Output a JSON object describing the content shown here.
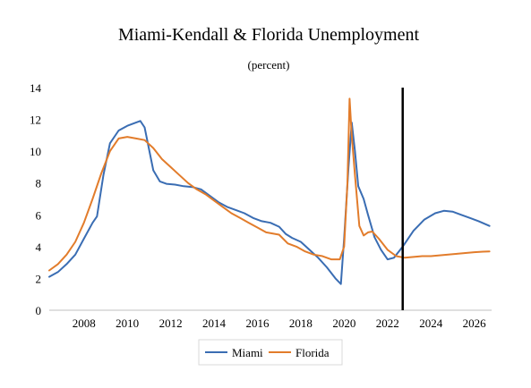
{
  "chart_data": {
    "type": "line",
    "title": "Miami-Kendall & Florida Unemployment",
    "subtitle": "(percent)",
    "xlabel": "",
    "ylabel": "",
    "xlim": [
      2006.4,
      2026.8
    ],
    "ylim": [
      0,
      14
    ],
    "x_ticks": [
      2008,
      2010,
      2012,
      2014,
      2016,
      2018,
      2020,
      2022,
      2024,
      2026
    ],
    "y_ticks": [
      0,
      2,
      4,
      6,
      8,
      10,
      12,
      14
    ],
    "grid": false,
    "legend_position": "bottom-center",
    "vertical_marker_x": 2022.7,
    "series": [
      {
        "name": "Miami",
        "color": "#3a6db3",
        "points": [
          [
            2006.4,
            2.1
          ],
          [
            2006.8,
            2.4
          ],
          [
            2007.2,
            2.9
          ],
          [
            2007.6,
            3.5
          ],
          [
            2008.0,
            4.5
          ],
          [
            2008.4,
            5.5
          ],
          [
            2008.6,
            5.9
          ],
          [
            2008.9,
            8.5
          ],
          [
            2009.2,
            10.5
          ],
          [
            2009.6,
            11.3
          ],
          [
            2010.0,
            11.6
          ],
          [
            2010.4,
            11.8
          ],
          [
            2010.6,
            11.9
          ],
          [
            2010.8,
            11.5
          ],
          [
            2011.2,
            8.8
          ],
          [
            2011.5,
            8.1
          ],
          [
            2011.8,
            7.95
          ],
          [
            2012.2,
            7.9
          ],
          [
            2012.6,
            7.8
          ],
          [
            2013.0,
            7.75
          ],
          [
            2013.4,
            7.6
          ],
          [
            2013.8,
            7.2
          ],
          [
            2014.2,
            6.8
          ],
          [
            2014.6,
            6.5
          ],
          [
            2015.0,
            6.3
          ],
          [
            2015.4,
            6.1
          ],
          [
            2015.8,
            5.8
          ],
          [
            2016.2,
            5.6
          ],
          [
            2016.6,
            5.5
          ],
          [
            2017.0,
            5.25
          ],
          [
            2017.3,
            4.8
          ],
          [
            2017.6,
            4.55
          ],
          [
            2018.0,
            4.3
          ],
          [
            2018.4,
            3.8
          ],
          [
            2018.8,
            3.3
          ],
          [
            2019.2,
            2.7
          ],
          [
            2019.6,
            2.0
          ],
          [
            2019.85,
            1.65
          ],
          [
            2020.0,
            4.5
          ],
          [
            2020.2,
            9.0
          ],
          [
            2020.35,
            11.8
          ],
          [
            2020.5,
            10.0
          ],
          [
            2020.65,
            7.8
          ],
          [
            2020.9,
            7.0
          ],
          [
            2021.1,
            6.0
          ],
          [
            2021.4,
            4.6
          ],
          [
            2021.7,
            3.8
          ],
          [
            2022.0,
            3.2
          ],
          [
            2022.3,
            3.3
          ],
          [
            2022.7,
            4.0
          ],
          [
            2023.2,
            5.0
          ],
          [
            2023.7,
            5.7
          ],
          [
            2024.2,
            6.1
          ],
          [
            2024.6,
            6.25
          ],
          [
            2025.0,
            6.2
          ],
          [
            2025.4,
            6.0
          ],
          [
            2025.8,
            5.8
          ],
          [
            2026.2,
            5.6
          ],
          [
            2026.7,
            5.3
          ]
        ]
      },
      {
        "name": "Florida",
        "color": "#e27c2b",
        "points": [
          [
            2006.4,
            2.5
          ],
          [
            2006.8,
            2.9
          ],
          [
            2007.2,
            3.5
          ],
          [
            2007.6,
            4.3
          ],
          [
            2008.0,
            5.5
          ],
          [
            2008.4,
            7.0
          ],
          [
            2008.8,
            8.6
          ],
          [
            2009.2,
            10.0
          ],
          [
            2009.6,
            10.8
          ],
          [
            2010.0,
            10.9
          ],
          [
            2010.4,
            10.8
          ],
          [
            2010.8,
            10.7
          ],
          [
            2011.2,
            10.2
          ],
          [
            2011.6,
            9.5
          ],
          [
            2012.0,
            9.0
          ],
          [
            2012.4,
            8.5
          ],
          [
            2012.8,
            8.0
          ],
          [
            2013.2,
            7.6
          ],
          [
            2013.6,
            7.3
          ],
          [
            2014.0,
            6.9
          ],
          [
            2014.4,
            6.5
          ],
          [
            2014.8,
            6.1
          ],
          [
            2015.2,
            5.8
          ],
          [
            2015.6,
            5.5
          ],
          [
            2016.0,
            5.2
          ],
          [
            2016.4,
            4.9
          ],
          [
            2016.8,
            4.8
          ],
          [
            2017.0,
            4.75
          ],
          [
            2017.4,
            4.2
          ],
          [
            2017.8,
            4.0
          ],
          [
            2018.2,
            3.7
          ],
          [
            2018.6,
            3.5
          ],
          [
            2019.0,
            3.4
          ],
          [
            2019.4,
            3.2
          ],
          [
            2019.8,
            3.2
          ],
          [
            2020.0,
            4.0
          ],
          [
            2020.15,
            8.0
          ],
          [
            2020.25,
            13.3
          ],
          [
            2020.35,
            11.0
          ],
          [
            2020.5,
            8.5
          ],
          [
            2020.7,
            5.3
          ],
          [
            2020.9,
            4.7
          ],
          [
            2021.1,
            4.9
          ],
          [
            2021.3,
            4.95
          ],
          [
            2021.6,
            4.5
          ],
          [
            2022.0,
            3.8
          ],
          [
            2022.4,
            3.4
          ],
          [
            2022.8,
            3.3
          ],
          [
            2023.2,
            3.35
          ],
          [
            2023.6,
            3.4
          ],
          [
            2024.0,
            3.4
          ],
          [
            2024.4,
            3.45
          ],
          [
            2024.8,
            3.5
          ],
          [
            2025.2,
            3.55
          ],
          [
            2025.6,
            3.6
          ],
          [
            2026.0,
            3.65
          ],
          [
            2026.4,
            3.68
          ],
          [
            2026.7,
            3.7
          ]
        ]
      }
    ]
  }
}
